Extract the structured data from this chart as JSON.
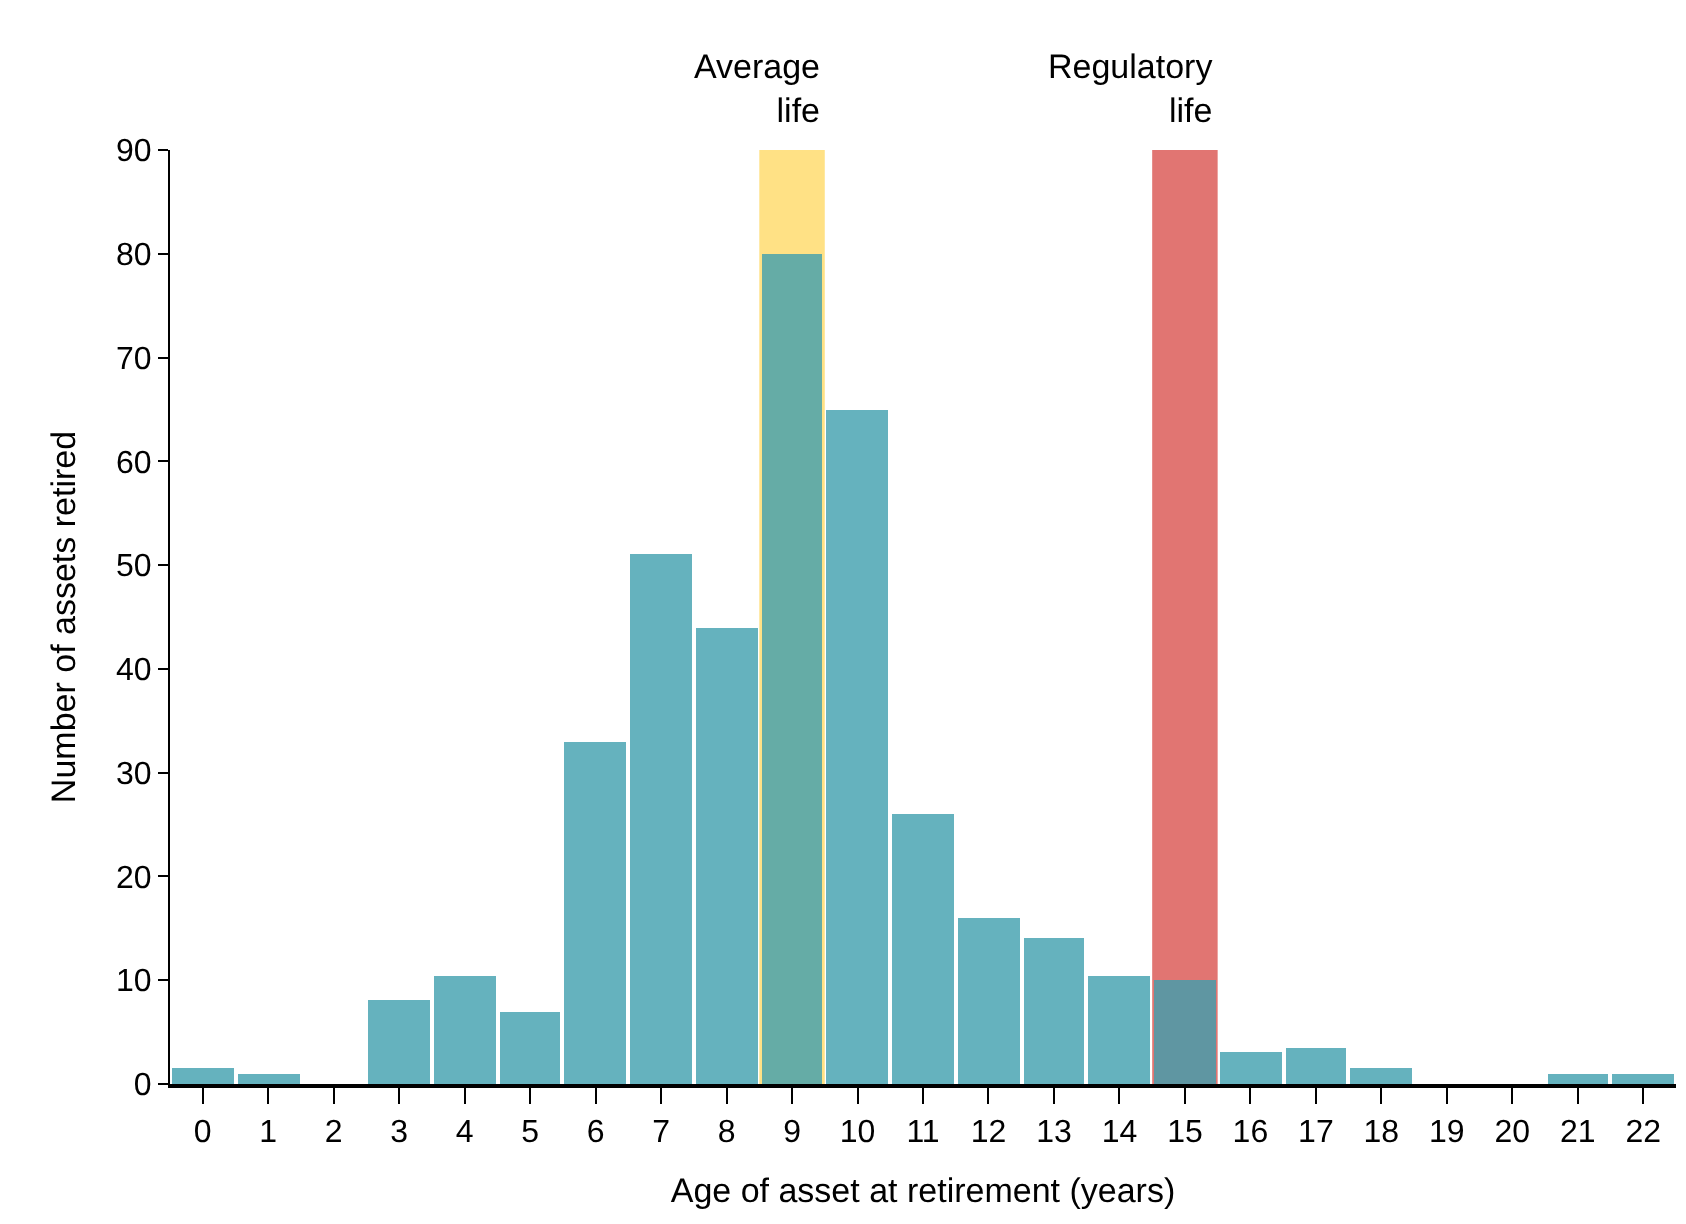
{
  "chart_data": {
    "type": "bar",
    "xlabel": "Age of asset at retirement (years)",
    "ylabel": "Number of assets retired",
    "x": [
      0,
      1,
      2,
      3,
      4,
      5,
      6,
      7,
      8,
      9,
      10,
      11,
      12,
      13,
      14,
      15,
      16,
      17,
      18,
      19,
      20,
      21,
      22
    ],
    "values": [
      1.5,
      1,
      0,
      8,
      10.5,
      7,
      33,
      51,
      44,
      80,
      65,
      26,
      16,
      14,
      10.5,
      10,
      3,
      3.5,
      1.5,
      0,
      0,
      1,
      1
    ],
    "color": "#3f9fae",
    "xlim": [
      -0.5,
      22.5
    ],
    "xticks": [
      0,
      1,
      2,
      3,
      4,
      5,
      6,
      7,
      8,
      9,
      10,
      11,
      12,
      13,
      14,
      15,
      16,
      17,
      18,
      19,
      20,
      21,
      22
    ],
    "ylim": [
      0,
      90
    ],
    "yticks": [
      0,
      10,
      20,
      30,
      40,
      50,
      60,
      70,
      80,
      90
    ],
    "bands": [
      {
        "axis": "x",
        "from": 8.5,
        "to": 9.5,
        "label": "Average\nlife",
        "color": "#ffd966"
      },
      {
        "axis": "x",
        "from": 14.5,
        "to": 15.5,
        "label": "Regulatory\nlife",
        "color": "#d9534f"
      }
    ]
  }
}
